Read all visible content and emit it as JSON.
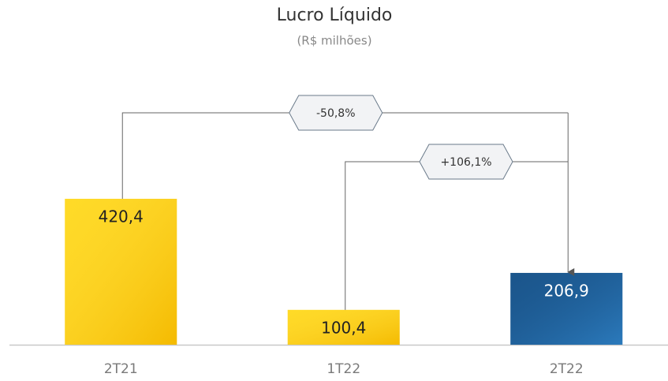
{
  "chart_data": {
    "type": "bar",
    "title": "Lucro Líquido",
    "subtitle": "(R$ milhões)",
    "categories": [
      "2T21",
      "1T22",
      "2T22"
    ],
    "values": [
      420.4,
      100.4,
      206.9
    ],
    "value_labels": [
      "420,4",
      "100,4",
      "206,9"
    ],
    "colors": [
      "#ffd400",
      "#ffd400",
      "#1f5f98"
    ],
    "annotations": [
      "-50,8%",
      "+106,1%"
    ]
  }
}
